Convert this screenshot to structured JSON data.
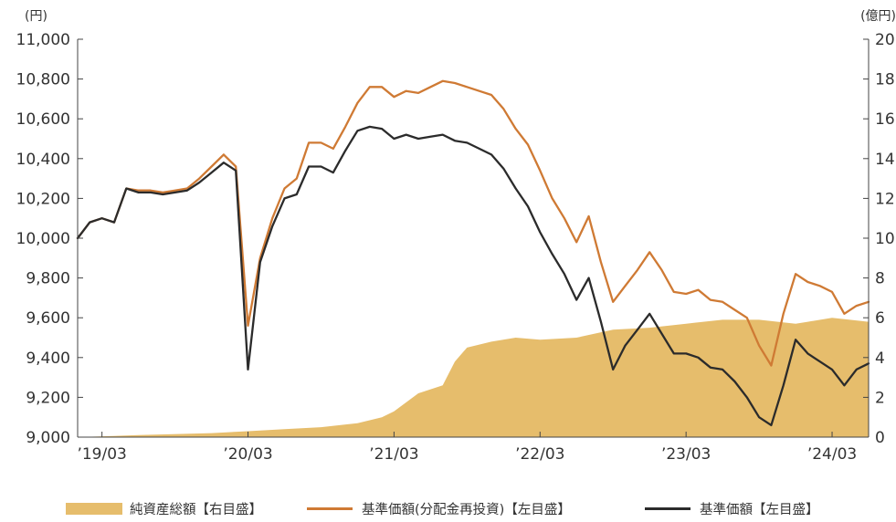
{
  "chart_data": {
    "type": "line",
    "left_axis_unit": "(円)",
    "right_axis_unit": "(億円)",
    "x_ticks": [
      "’19/03",
      "’20/03",
      "’21/03",
      "’22/03",
      "’23/03",
      "’24/03"
    ],
    "y_left": {
      "min": 9000,
      "max": 11000,
      "ticks": [
        9000,
        9200,
        9400,
        9600,
        9800,
        10000,
        10200,
        10400,
        10600,
        10800,
        11000
      ],
      "tick_labels": [
        "9,000",
        "9,200",
        "9,400",
        "9,600",
        "9,800",
        "10,000",
        "10,200",
        "10,400",
        "10,600",
        "10,800",
        "11,000"
      ]
    },
    "y_right": {
      "min": 0,
      "max": 20,
      "ticks": [
        0,
        2,
        4,
        6,
        8,
        10,
        12,
        14,
        16,
        18,
        20
      ],
      "tick_labels": [
        "0",
        "2",
        "4",
        "6",
        "8",
        "10",
        "12",
        "14",
        "16",
        "18",
        "20"
      ]
    },
    "series": [
      {
        "name": "純資産総額【右目盛】",
        "axis": "right",
        "kind": "area",
        "color": "#e6bd6c",
        "points": [
          [
            "2019-01",
            0.0
          ],
          [
            "2019-06",
            0.1
          ],
          [
            "2019-12",
            0.2
          ],
          [
            "2020-03",
            0.3
          ],
          [
            "2020-06",
            0.4
          ],
          [
            "2020-09",
            0.5
          ],
          [
            "2020-12",
            0.7
          ],
          [
            "2021-02",
            1.0
          ],
          [
            "2021-03",
            1.3
          ],
          [
            "2021-05",
            2.2
          ],
          [
            "2021-07",
            2.6
          ],
          [
            "2021-08",
            3.8
          ],
          [
            "2021-09",
            4.5
          ],
          [
            "2021-11",
            4.8
          ],
          [
            "2022-01",
            5.0
          ],
          [
            "2022-03",
            4.9
          ],
          [
            "2022-06",
            5.0
          ],
          [
            "2022-09",
            5.4
          ],
          [
            "2022-12",
            5.5
          ],
          [
            "2023-03",
            5.7
          ],
          [
            "2023-06",
            5.9
          ],
          [
            "2023-09",
            5.9
          ],
          [
            "2023-12",
            5.7
          ],
          [
            "2024-01",
            5.8
          ],
          [
            "2024-03",
            6.0
          ],
          [
            "2024-06",
            5.8
          ]
        ]
      },
      {
        "name": "基準価額(分配金再投資)【左目盛】",
        "axis": "left",
        "kind": "line",
        "color": "#cf7a34",
        "points": [
          [
            "2019-01",
            10000
          ],
          [
            "2019-02",
            10080
          ],
          [
            "2019-03",
            10100
          ],
          [
            "2019-04",
            10080
          ],
          [
            "2019-05",
            10250
          ],
          [
            "2019-06",
            10240
          ],
          [
            "2019-07",
            10240
          ],
          [
            "2019-08",
            10230
          ],
          [
            "2019-09",
            10240
          ],
          [
            "2019-10",
            10250
          ],
          [
            "2019-11",
            10300
          ],
          [
            "2019-12",
            10360
          ],
          [
            "2020-01",
            10420
          ],
          [
            "2020-02",
            10360
          ],
          [
            "2020-03",
            9560
          ],
          [
            "2020-04",
            9900
          ],
          [
            "2020-05",
            10100
          ],
          [
            "2020-06",
            10250
          ],
          [
            "2020-07",
            10300
          ],
          [
            "2020-08",
            10480
          ],
          [
            "2020-09",
            10480
          ],
          [
            "2020-10",
            10450
          ],
          [
            "2020-11",
            10560
          ],
          [
            "2020-12",
            10680
          ],
          [
            "2021-01",
            10760
          ],
          [
            "2021-02",
            10760
          ],
          [
            "2021-03",
            10710
          ],
          [
            "2021-04",
            10740
          ],
          [
            "2021-05",
            10730
          ],
          [
            "2021-06",
            10760
          ],
          [
            "2021-07",
            10790
          ],
          [
            "2021-08",
            10780
          ],
          [
            "2021-09",
            10760
          ],
          [
            "2021-10",
            10740
          ],
          [
            "2021-11",
            10720
          ],
          [
            "2021-12",
            10650
          ],
          [
            "2022-01",
            10550
          ],
          [
            "2022-02",
            10470
          ],
          [
            "2022-03",
            10340
          ],
          [
            "2022-04",
            10200
          ],
          [
            "2022-05",
            10100
          ],
          [
            "2022-06",
            9980
          ],
          [
            "2022-07",
            10110
          ],
          [
            "2022-08",
            9880
          ],
          [
            "2022-09",
            9680
          ],
          [
            "2022-10",
            9760
          ],
          [
            "2022-11",
            9840
          ],
          [
            "2022-12",
            9930
          ],
          [
            "2023-01",
            9840
          ],
          [
            "2023-02",
            9730
          ],
          [
            "2023-03",
            9720
          ],
          [
            "2023-04",
            9740
          ],
          [
            "2023-05",
            9690
          ],
          [
            "2023-06",
            9680
          ],
          [
            "2023-07",
            9640
          ],
          [
            "2023-08",
            9600
          ],
          [
            "2023-09",
            9460
          ],
          [
            "2023-10",
            9360
          ],
          [
            "2023-11",
            9620
          ],
          [
            "2023-12",
            9820
          ],
          [
            "2024-01",
            9780
          ],
          [
            "2024-02",
            9760
          ],
          [
            "2024-03",
            9730
          ],
          [
            "2024-04",
            9620
          ],
          [
            "2024-05",
            9660
          ],
          [
            "2024-06",
            9680
          ]
        ]
      },
      {
        "name": "基準価額【左目盛】",
        "axis": "left",
        "kind": "line",
        "color": "#2b2b2b",
        "points": [
          [
            "2019-01",
            10000
          ],
          [
            "2019-02",
            10080
          ],
          [
            "2019-03",
            10100
          ],
          [
            "2019-04",
            10080
          ],
          [
            "2019-05",
            10250
          ],
          [
            "2019-06",
            10230
          ],
          [
            "2019-07",
            10230
          ],
          [
            "2019-08",
            10220
          ],
          [
            "2019-09",
            10230
          ],
          [
            "2019-10",
            10240
          ],
          [
            "2019-11",
            10280
          ],
          [
            "2019-12",
            10330
          ],
          [
            "2020-01",
            10380
          ],
          [
            "2020-02",
            10340
          ],
          [
            "2020-03",
            9340
          ],
          [
            "2020-04",
            9880
          ],
          [
            "2020-05",
            10060
          ],
          [
            "2020-06",
            10200
          ],
          [
            "2020-07",
            10220
          ],
          [
            "2020-08",
            10360
          ],
          [
            "2020-09",
            10360
          ],
          [
            "2020-10",
            10330
          ],
          [
            "2020-11",
            10440
          ],
          [
            "2020-12",
            10540
          ],
          [
            "2021-01",
            10560
          ],
          [
            "2021-02",
            10550
          ],
          [
            "2021-03",
            10500
          ],
          [
            "2021-04",
            10520
          ],
          [
            "2021-05",
            10500
          ],
          [
            "2021-06",
            10510
          ],
          [
            "2021-07",
            10520
          ],
          [
            "2021-08",
            10490
          ],
          [
            "2021-09",
            10480
          ],
          [
            "2021-10",
            10450
          ],
          [
            "2021-11",
            10420
          ],
          [
            "2021-12",
            10350
          ],
          [
            "2022-01",
            10250
          ],
          [
            "2022-02",
            10160
          ],
          [
            "2022-03",
            10030
          ],
          [
            "2022-04",
            9920
          ],
          [
            "2022-05",
            9820
          ],
          [
            "2022-06",
            9690
          ],
          [
            "2022-07",
            9800
          ],
          [
            "2022-08",
            9580
          ],
          [
            "2022-09",
            9340
          ],
          [
            "2022-10",
            9460
          ],
          [
            "2022-11",
            9540
          ],
          [
            "2022-12",
            9620
          ],
          [
            "2023-01",
            9520
          ],
          [
            "2023-02",
            9420
          ],
          [
            "2023-03",
            9420
          ],
          [
            "2023-04",
            9400
          ],
          [
            "2023-05",
            9350
          ],
          [
            "2023-06",
            9340
          ],
          [
            "2023-07",
            9280
          ],
          [
            "2023-08",
            9200
          ],
          [
            "2023-09",
            9100
          ],
          [
            "2023-10",
            9060
          ],
          [
            "2023-11",
            9260
          ],
          [
            "2023-12",
            9490
          ],
          [
            "2024-01",
            9420
          ],
          [
            "2024-02",
            9380
          ],
          [
            "2024-03",
            9340
          ],
          [
            "2024-04",
            9260
          ],
          [
            "2024-05",
            9340
          ],
          [
            "2024-06",
            9370
          ]
        ]
      }
    ],
    "legend_position": "bottom"
  }
}
